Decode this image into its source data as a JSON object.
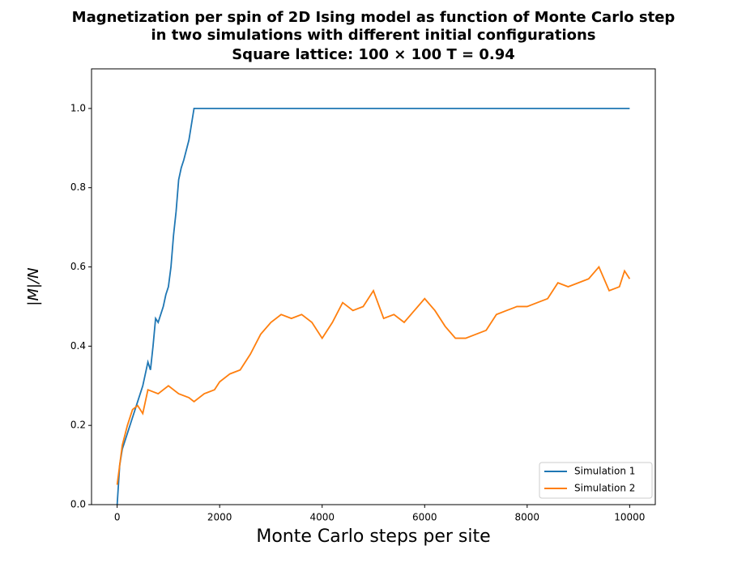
{
  "chart_data": {
    "type": "line",
    "title": [
      "Magnetization per spin of 2D Ising model as function of Monte Carlo step",
      "in two simulations with different initial configurations",
      "Square lattice: 100 × 100   T = 0.94"
    ],
    "xlabel": "Monte Carlo steps per site",
    "ylabel": "|M|/N",
    "series": [
      {
        "name": "Simulation 1",
        "color": "#1f77b4",
        "x": [
          0,
          50,
          100,
          200,
          300,
          400,
          500,
          600,
          650,
          700,
          750,
          800,
          900,
          950,
          1000,
          1050,
          1100,
          1150,
          1200,
          1250,
          1300,
          1400,
          1450,
          1500,
          10000
        ],
        "values": [
          0.0,
          0.1,
          0.14,
          0.18,
          0.22,
          0.26,
          0.3,
          0.36,
          0.34,
          0.4,
          0.47,
          0.46,
          0.5,
          0.53,
          0.55,
          0.6,
          0.68,
          0.74,
          0.82,
          0.85,
          0.87,
          0.92,
          0.96,
          1.0,
          1.0
        ]
      },
      {
        "name": "Simulation 2",
        "color": "#ff7f0e",
        "x": [
          0,
          100,
          200,
          300,
          400,
          500,
          600,
          800,
          1000,
          1200,
          1400,
          1500,
          1700,
          1900,
          2000,
          2200,
          2400,
          2600,
          2800,
          3000,
          3200,
          3400,
          3600,
          3800,
          4000,
          4200,
          4400,
          4600,
          4800,
          5000,
          5200,
          5400,
          5600,
          5800,
          6000,
          6200,
          6400,
          6600,
          6800,
          7000,
          7200,
          7400,
          7600,
          7800,
          8000,
          8200,
          8400,
          8600,
          8800,
          9000,
          9200,
          9400,
          9600,
          9800,
          9900,
          10000
        ],
        "values": [
          0.05,
          0.15,
          0.2,
          0.24,
          0.25,
          0.23,
          0.29,
          0.28,
          0.3,
          0.28,
          0.27,
          0.26,
          0.28,
          0.29,
          0.31,
          0.33,
          0.34,
          0.38,
          0.43,
          0.46,
          0.48,
          0.47,
          0.48,
          0.46,
          0.42,
          0.46,
          0.51,
          0.49,
          0.5,
          0.54,
          0.47,
          0.48,
          0.46,
          0.49,
          0.52,
          0.49,
          0.45,
          0.42,
          0.42,
          0.43,
          0.44,
          0.48,
          0.49,
          0.5,
          0.5,
          0.51,
          0.52,
          0.56,
          0.55,
          0.56,
          0.57,
          0.6,
          0.54,
          0.55,
          0.59,
          0.57
        ]
      }
    ],
    "xlim": [
      -500,
      10500
    ],
    "xticks": [
      0,
      2000,
      4000,
      6000,
      8000,
      10000
    ],
    "ylim": [
      0,
      1.1
    ],
    "yticks": [
      {
        "value": 0,
        "label": "0.0"
      },
      0.2,
      0.4,
      0.6,
      0.8,
      {
        "value": 1,
        "label": "1.0"
      }
    ],
    "legend": "lower right",
    "grid": false
  }
}
